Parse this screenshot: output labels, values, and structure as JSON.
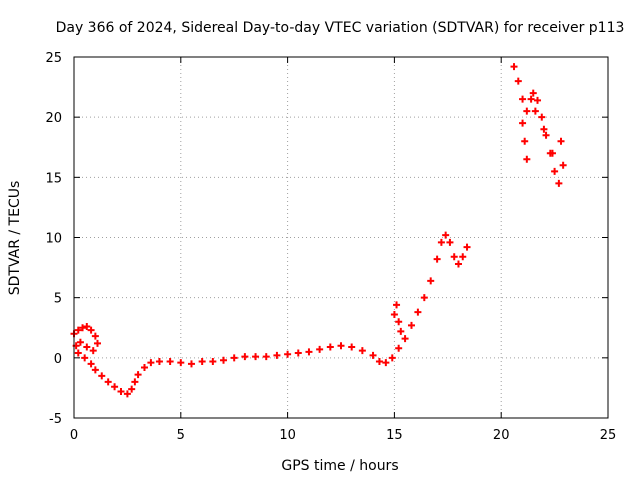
{
  "chart_data": {
    "type": "scatter",
    "title": "Day 366 of 2024, Sidereal Day-to-day VTEC variation (SDTVAR) for receiver p113",
    "xlabel": "GPS time / hours",
    "ylabel": "SDTVAR / TECUs",
    "xlim": [
      0,
      25
    ],
    "ylim": [
      -5,
      25
    ],
    "x_ticks": [
      "0",
      "5",
      "10",
      "15",
      "20",
      "25"
    ],
    "y_ticks": [
      "-5",
      "0",
      "5",
      "10",
      "15",
      "20",
      "25"
    ],
    "grid": true,
    "marker": "plus",
    "series": [
      {
        "name": "SDTVAR",
        "color": "#ff0000",
        "x": [
          0.0,
          0.2,
          0.4,
          0.6,
          0.8,
          1.0,
          1.1,
          0.9,
          0.6,
          0.3,
          0.1,
          0.2,
          0.5,
          0.8,
          1.0,
          1.3,
          1.6,
          1.9,
          2.2,
          2.5,
          2.7,
          2.85,
          3.0,
          3.3,
          3.6,
          4.0,
          4.5,
          5.0,
          5.5,
          6.0,
          6.5,
          7.0,
          7.5,
          8.0,
          8.5,
          9.0,
          9.5,
          10.0,
          10.5,
          11.0,
          11.5,
          12.0,
          12.5,
          13.0,
          13.5,
          14.0,
          14.3,
          14.6,
          14.9,
          15.2,
          15.5,
          15.8,
          16.1,
          16.4,
          16.7,
          17.0,
          17.2,
          17.4,
          17.6,
          17.8,
          18.0,
          18.2,
          18.4,
          15.0,
          15.1,
          15.2,
          15.3,
          20.6,
          20.8,
          21.0,
          21.2,
          21.4,
          21.5,
          21.7,
          21.9,
          22.1,
          22.3,
          22.5,
          22.7,
          22.9,
          21.0,
          21.1,
          21.2,
          21.6,
          22.0,
          22.4,
          22.8
        ],
        "y": [
          2.0,
          2.3,
          2.5,
          2.6,
          2.3,
          1.8,
          1.2,
          0.6,
          0.9,
          1.3,
          1.0,
          0.4,
          0.0,
          -0.5,
          -1.0,
          -1.5,
          -2.0,
          -2.4,
          -2.8,
          -3.0,
          -2.6,
          -2.0,
          -1.4,
          -0.8,
          -0.4,
          -0.3,
          -0.3,
          -0.4,
          -0.5,
          -0.3,
          -0.3,
          -0.2,
          0.0,
          0.1,
          0.1,
          0.1,
          0.2,
          0.3,
          0.4,
          0.5,
          0.7,
          0.9,
          1.0,
          0.9,
          0.6,
          0.2,
          -0.3,
          -0.4,
          0.0,
          0.8,
          1.6,
          2.7,
          3.8,
          5.0,
          6.4,
          8.2,
          9.6,
          10.2,
          9.6,
          8.4,
          7.8,
          8.4,
          9.2,
          3.6,
          4.4,
          3.0,
          2.2,
          24.2,
          23.0,
          21.5,
          20.5,
          21.5,
          22.0,
          21.4,
          20.0,
          18.5,
          17.0,
          15.5,
          14.5,
          16.0,
          19.5,
          18.0,
          16.5,
          20.5,
          19.0,
          17.0,
          18.0
        ]
      }
    ]
  }
}
